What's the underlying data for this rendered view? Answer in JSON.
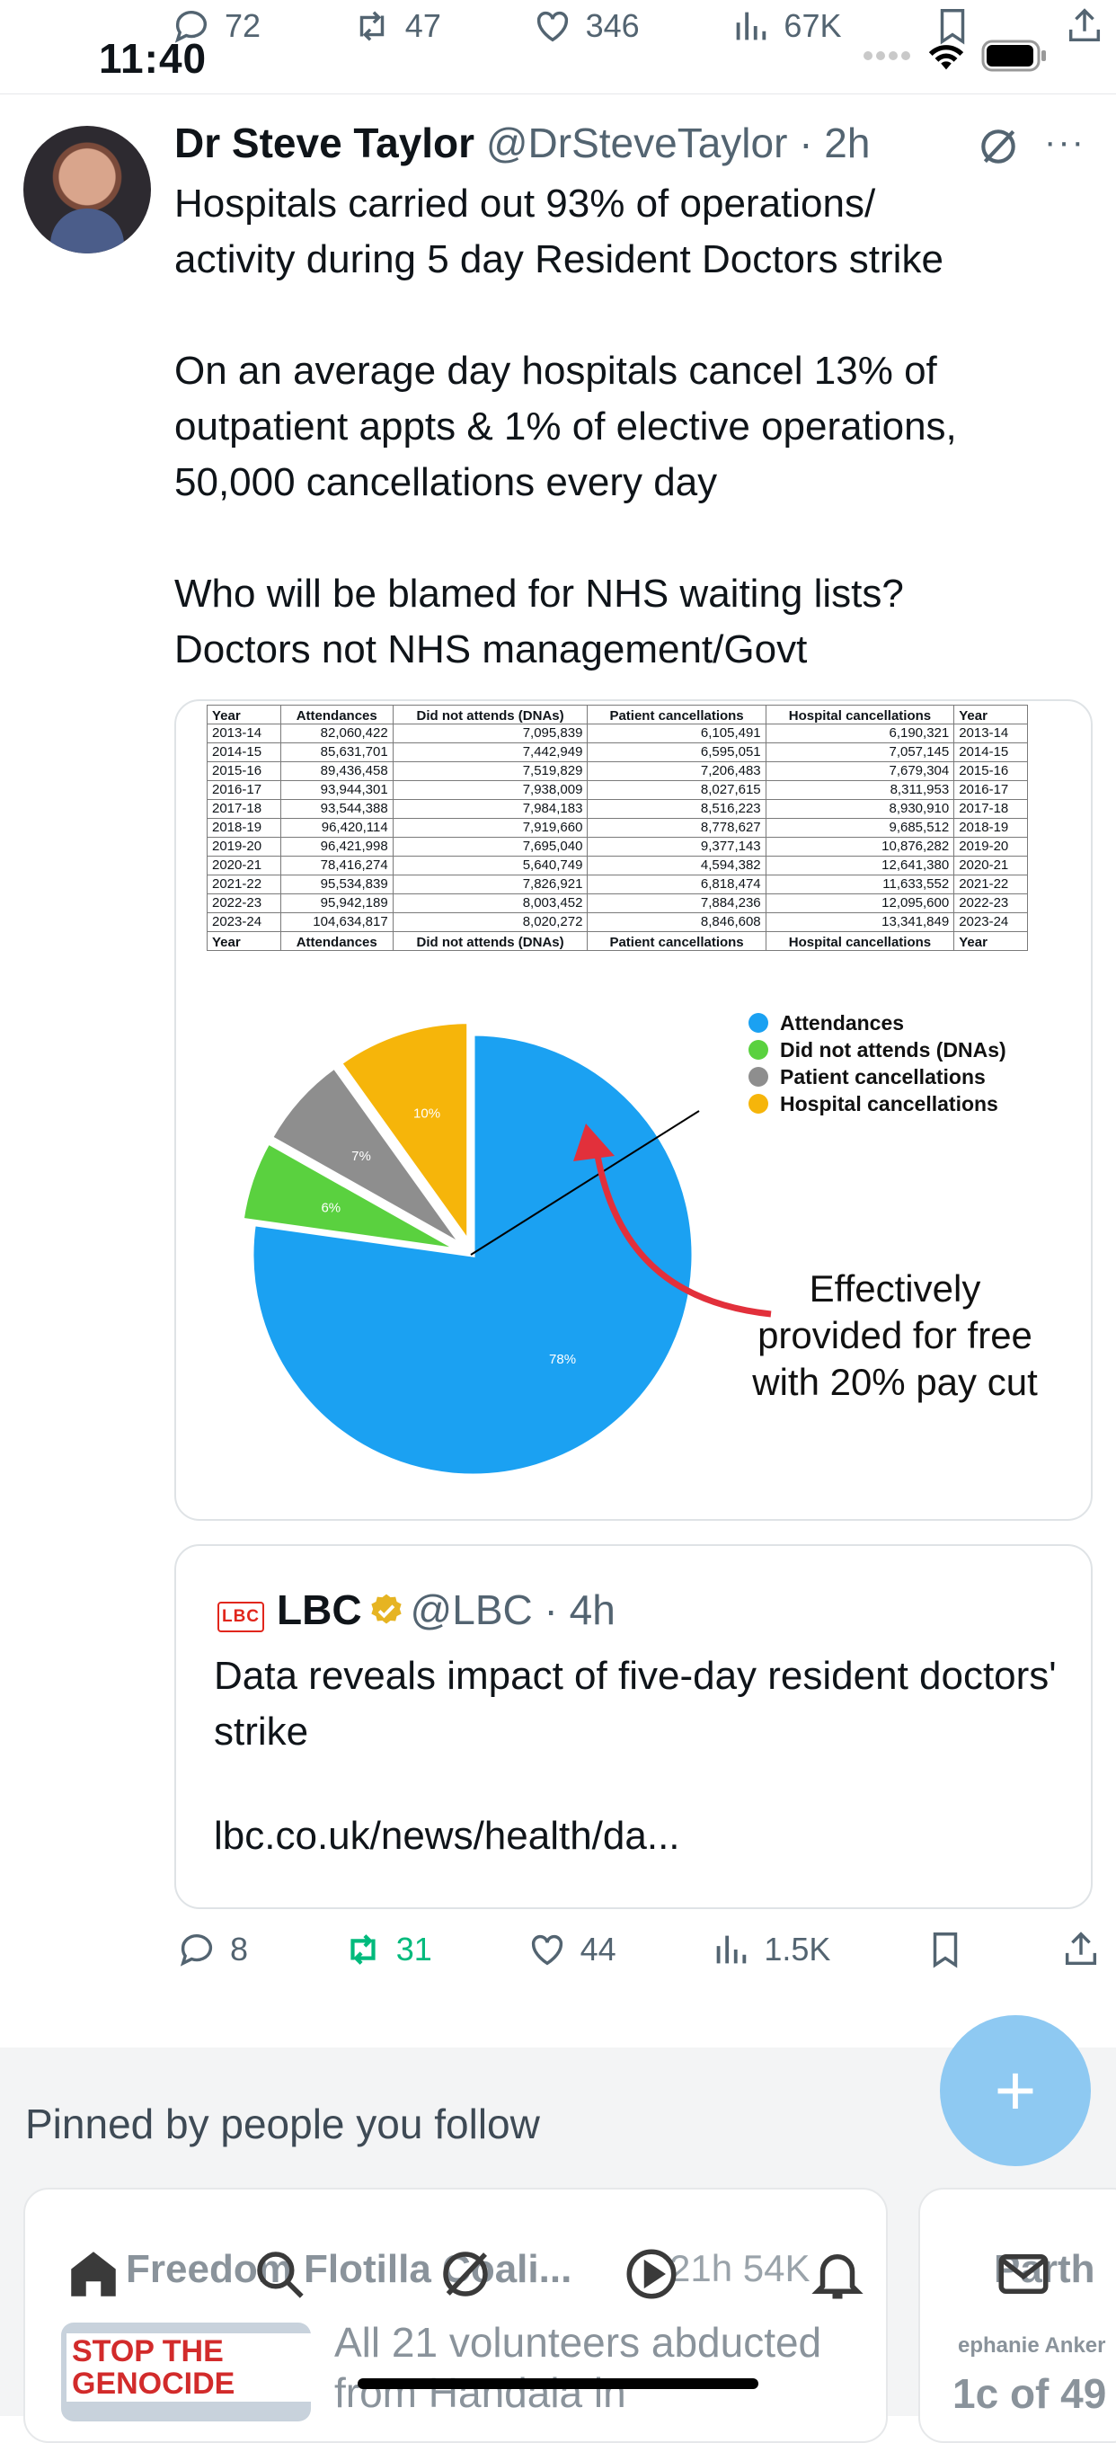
{
  "status_bar": {
    "time": "11:40"
  },
  "top_actions": {
    "replies": "72",
    "reposts": "47",
    "likes": "346",
    "views": "67K"
  },
  "tweet": {
    "display_name": "Dr Steve Taylor",
    "handle_time": "@DrSteveTaylor · 2h",
    "more_label": "···",
    "text": "Hospitals carried out 93% of operations/\nactivity during 5 day Resident Doctors strike\n\nOn an average day hospitals cancel 13% of\noutpatient appts & 1% of elective operations,\n50,000 cancellations every day\n\nWho will be blamed for NHS waiting lists?\nDoctors not NHS management/Govt",
    "actions": {
      "replies": "8",
      "reposts": "31",
      "likes": "44",
      "views": "1.5K"
    }
  },
  "media_table": {
    "headers": [
      "Year",
      "Attendances",
      "Did not attends (DNAs)",
      "Patient cancellations",
      "Hospital cancellations",
      "Year"
    ],
    "rows": [
      [
        "2013-14",
        "82,060,422",
        "7,095,839",
        "6,105,491",
        "6,190,321",
        "2013-14"
      ],
      [
        "2014-15",
        "85,631,701",
        "7,442,949",
        "6,595,051",
        "7,057,145",
        "2014-15"
      ],
      [
        "2015-16",
        "89,436,458",
        "7,519,829",
        "7,206,483",
        "7,679,304",
        "2015-16"
      ],
      [
        "2016-17",
        "93,944,301",
        "7,938,009",
        "8,027,615",
        "8,311,953",
        "2016-17"
      ],
      [
        "2017-18",
        "93,544,388",
        "7,984,183",
        "8,516,223",
        "8,930,910",
        "2017-18"
      ],
      [
        "2018-19",
        "96,420,114",
        "7,919,660",
        "8,778,627",
        "9,685,512",
        "2018-19"
      ],
      [
        "2019-20",
        "96,421,998",
        "7,695,040",
        "9,377,143",
        "10,876,282",
        "2019-20"
      ],
      [
        "2020-21",
        "78,416,274",
        "5,640,749",
        "4,594,382",
        "12,641,380",
        "2020-21"
      ],
      [
        "2021-22",
        "95,534,839",
        "7,826,921",
        "6,818,474",
        "11,633,552",
        "2021-22"
      ],
      [
        "2022-23",
        "95,942,189",
        "8,003,452",
        "7,884,236",
        "12,095,600",
        "2022-23"
      ],
      [
        "2023-24",
        "104,634,817",
        "8,020,272",
        "8,846,608",
        "13,341,849",
        "2023-24"
      ]
    ]
  },
  "chart_data": {
    "type": "pie",
    "categories": [
      "Attendances",
      "Did not attends (DNAs)",
      "Patient cancellations",
      "Hospital cancellations"
    ],
    "values": [
      78,
      6,
      7,
      10
    ],
    "labels": [
      "78%",
      "6%",
      "7%",
      "10%"
    ],
    "colors": [
      "#1ba1f2",
      "#5ad13f",
      "#8e8e8e",
      "#f6b50a"
    ],
    "legend_position": "top-right",
    "annotation": "Effectively\nprovided for free\nwith 20% pay cut"
  },
  "quote": {
    "logo_text": "LBC",
    "display_name": "LBC",
    "handle_time": "@LBC · 4h",
    "text": "Data reveals impact of five-day resident doctors' strike",
    "link": "lbc.co.uk/news/health/da..."
  },
  "pinned": {
    "title": "Pinned by people you follow",
    "card1": {
      "name": "Freedom Flotilla Coali...",
      "meta": "21h  54K",
      "thumb_text": "STOP THE GENOCIDE",
      "text": "All 21 volunteers abducted from Handala in"
    },
    "card2": {
      "name": "Parth",
      "sub": "ephanie Anker",
      "text": "1c of 49"
    }
  },
  "fab_label": "+",
  "icons": [
    "reply-icon",
    "repost-icon",
    "like-icon",
    "views-icon",
    "bookmark-icon",
    "share-icon",
    "grok-icon",
    "home-icon",
    "search-icon",
    "play-icon",
    "bell-icon",
    "mail-icon"
  ]
}
